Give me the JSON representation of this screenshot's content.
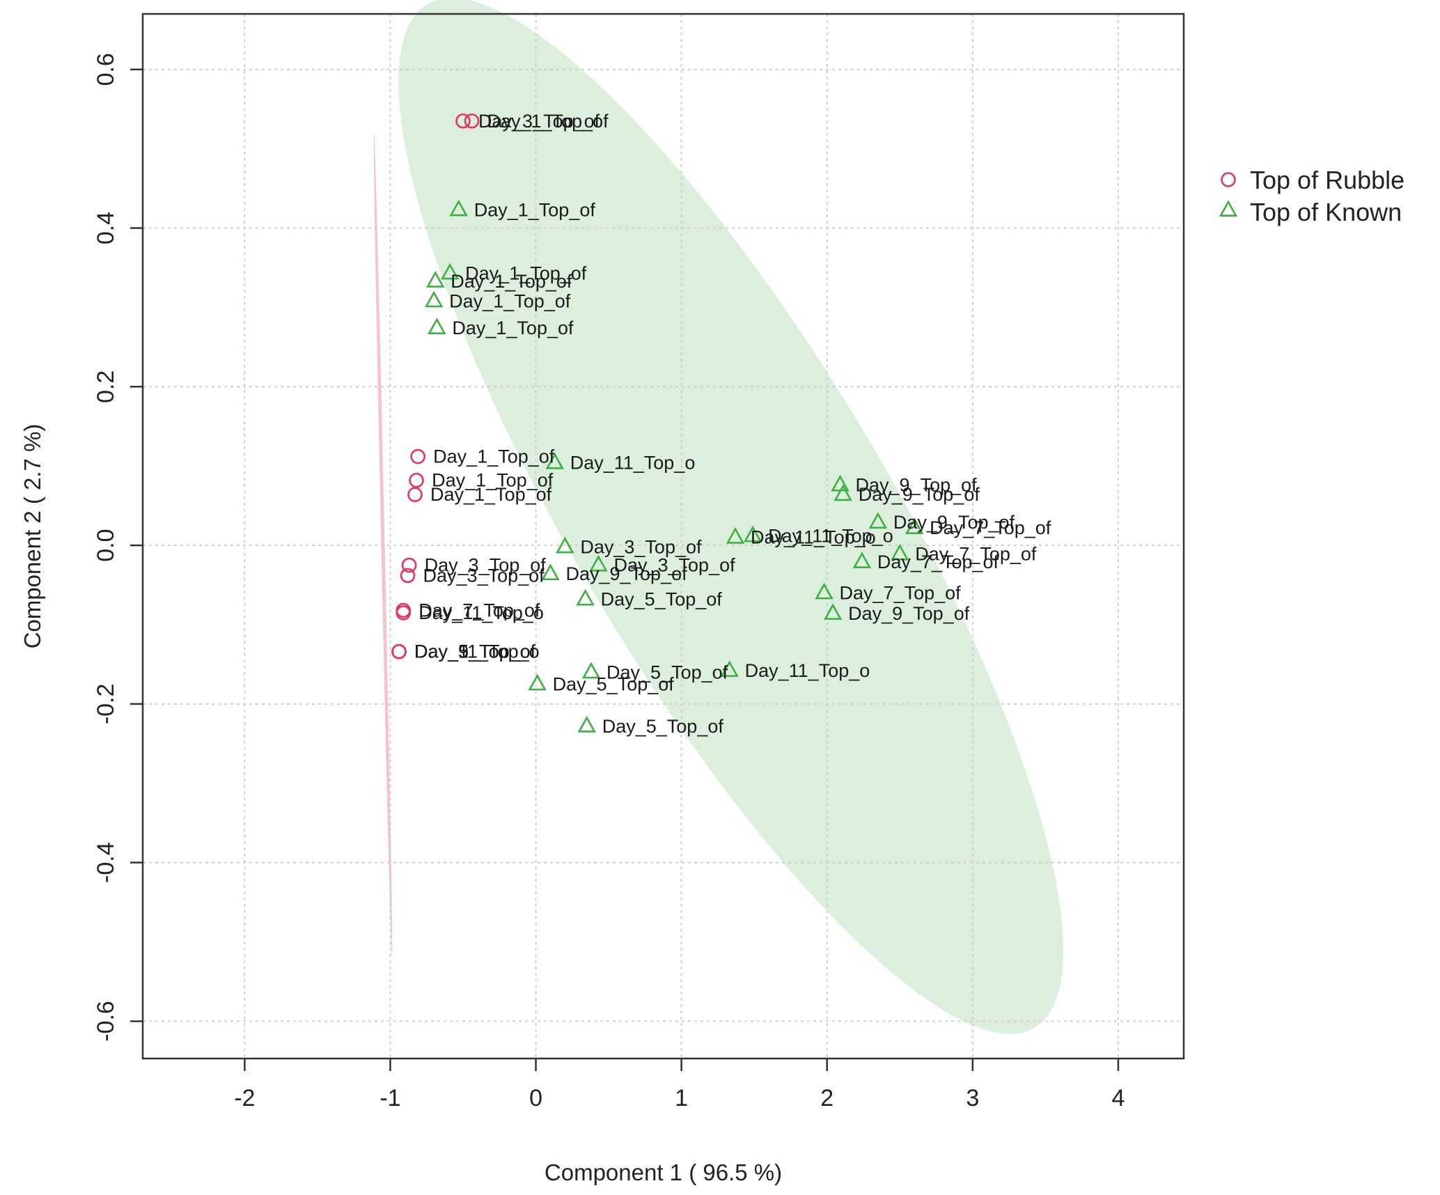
{
  "chart_data": {
    "type": "scatter",
    "title": "",
    "xlabel": "Component 1 ( 96.5 %)",
    "ylabel": "Component 2 ( 2.7 %)",
    "xlim": [
      -2.7,
      4.45
    ],
    "ylim": [
      -0.647,
      0.67
    ],
    "xticks": [
      -2,
      -1,
      0,
      1,
      2,
      3,
      4
    ],
    "yticks": [
      -0.6,
      -0.4,
      -0.2,
      0.0,
      0.2,
      0.4,
      0.6
    ],
    "xtick_labels": [
      "-2",
      "-1",
      "0",
      "1",
      "2",
      "3",
      "4"
    ],
    "ytick_labels": [
      "-0.6",
      "-0.4",
      "-0.2",
      "0.0",
      "0.2",
      "0.4",
      "0.6"
    ],
    "grid": true,
    "legend_position": "top-right, outside plot",
    "series": [
      {
        "name": "Top of Rubble",
        "marker": "circle",
        "color": "#e8335d",
        "ellipse_color": "#f2b8c6",
        "ellipse": {
          "center": [
            -1.05,
            0.0
          ],
          "semi_axis_major": 0.525,
          "semi_axis_minor": 0.012,
          "angle_deg": -83.2
        },
        "points": [
          {
            "x": -0.5,
            "y": 0.535,
            "label": "Day_3_Top_of"
          },
          {
            "x": -0.44,
            "y": 0.535,
            "label": "Day_1_Top_of"
          },
          {
            "x": -0.81,
            "y": 0.112,
            "label": "Day_1_Top_of"
          },
          {
            "x": -0.82,
            "y": 0.082,
            "label": "Day_1_Top_of"
          },
          {
            "x": -0.83,
            "y": 0.064,
            "label": "Day_1_Top_of"
          },
          {
            "x": -0.87,
            "y": -0.025,
            "label": "Day_3_Top_of"
          },
          {
            "x": -0.88,
            "y": -0.038,
            "label": "Day_3_Top_of"
          },
          {
            "x": -0.91,
            "y": -0.082,
            "label": "Day_7_Top_of"
          },
          {
            "x": -0.91,
            "y": -0.085,
            "label": "Day_11_Top_o"
          },
          {
            "x": -0.94,
            "y": -0.134,
            "label": "Day_5_Top_of"
          },
          {
            "x": -0.94,
            "y": -0.134,
            "label": "Day_9_Top_of"
          },
          {
            "x": -0.94,
            "y": -0.134,
            "label": "Day_11_Top_o"
          }
        ]
      },
      {
        "name": "Top of Known",
        "marker": "triangle",
        "color": "#3cb043",
        "ellipse_color": "#d6ecd7",
        "ellipse": {
          "center": [
            1.34,
            0.037
          ],
          "semi_axis_major": 2.35,
          "semi_axis_minor": 0.345,
          "angle_deg": -13.8
        },
        "points": [
          {
            "x": -0.53,
            "y": 0.423,
            "label": "Day_1_Top_of"
          },
          {
            "x": -0.59,
            "y": 0.343,
            "label": "Day_1_Top_of"
          },
          {
            "x": -0.69,
            "y": 0.333,
            "label": "Day_1_Top_of"
          },
          {
            "x": -0.7,
            "y": 0.308,
            "label": "Day_1_Top_of"
          },
          {
            "x": -0.68,
            "y": 0.274,
            "label": "Day_1_Top_of"
          },
          {
            "x": 0.13,
            "y": 0.104,
            "label": "Day_11_Top_o"
          },
          {
            "x": 0.2,
            "y": -0.002,
            "label": "Day_3_Top_of"
          },
          {
            "x": 0.43,
            "y": -0.025,
            "label": "Day_3_Top_of"
          },
          {
            "x": 0.1,
            "y": -0.036,
            "label": "Day_9_Top_of"
          },
          {
            "x": 0.34,
            "y": -0.068,
            "label": "Day_5_Top_of"
          },
          {
            "x": 0.38,
            "y": -0.16,
            "label": "Day_5_Top_of"
          },
          {
            "x": 0.01,
            "y": -0.175,
            "label": "Day_5_Top_of"
          },
          {
            "x": 0.35,
            "y": -0.228,
            "label": "Day_5_Top_of"
          },
          {
            "x": 1.33,
            "y": -0.158,
            "label": "Day_11_Top_o"
          },
          {
            "x": 1.37,
            "y": 0.01,
            "label": "Day_11_Top_o"
          },
          {
            "x": 1.49,
            "y": 0.012,
            "label": "Day_11_Top_o"
          },
          {
            "x": 2.09,
            "y": 0.076,
            "label": "Day_9_Top_of"
          },
          {
            "x": 2.11,
            "y": 0.064,
            "label": "Day_9_Top_of"
          },
          {
            "x": 2.35,
            "y": 0.029,
            "label": "Day_9_Top_of"
          },
          {
            "x": 2.6,
            "y": 0.022,
            "label": "Day_7_Top_of"
          },
          {
            "x": 2.5,
            "y": -0.011,
            "label": "Day_7_Top_of"
          },
          {
            "x": 2.24,
            "y": -0.021,
            "label": "Day_7_Top_of"
          },
          {
            "x": 1.98,
            "y": -0.06,
            "label": "Day_7_Top_of"
          },
          {
            "x": 2.04,
            "y": -0.086,
            "label": "Day_9_Top_of"
          }
        ]
      }
    ]
  }
}
